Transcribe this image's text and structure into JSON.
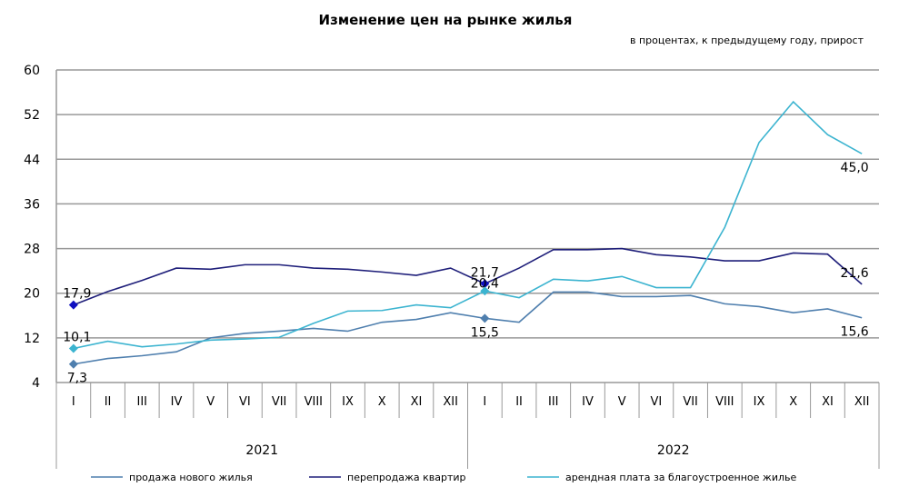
{
  "chart_data": {
    "type": "line",
    "title": "Изменение цен на рынке жилья",
    "subtitle": "в процентах, к предыдущему году, прирост",
    "ylim": [
      4,
      60
    ],
    "yticks": [
      4,
      12,
      20,
      28,
      36,
      44,
      52,
      60
    ],
    "months": [
      "I",
      "II",
      "III",
      "IV",
      "V",
      "VI",
      "VII",
      "VIII",
      "IX",
      "X",
      "XI",
      "XII",
      "I",
      "II",
      "III",
      "IV",
      "V",
      "VI",
      "VII",
      "VIII",
      "IX",
      "X",
      "XI",
      "XII"
    ],
    "years": [
      "2021",
      "2022"
    ],
    "series": [
      {
        "name": "продажа нового  жилья",
        "color": "#4f7fae",
        "values": [
          7.3,
          8.3,
          8.8,
          9.5,
          12.0,
          12.8,
          13.2,
          13.7,
          13.2,
          14.8,
          15.3,
          16.5,
          15.5,
          14.8,
          20.2,
          20.2,
          19.4,
          19.4,
          19.6,
          18.1,
          17.6,
          16.5,
          17.2,
          15.6
        ],
        "labels": {
          "0": "7,3",
          "12": "15,5",
          "23": "15,6"
        }
      },
      {
        "name": "перепродажа  квартир",
        "color": "#1f1f7a",
        "values": [
          17.9,
          20.3,
          22.3,
          24.5,
          24.3,
          25.1,
          25.1,
          24.5,
          24.3,
          23.8,
          23.2,
          24.5,
          21.7,
          24.5,
          27.8,
          27.8,
          28.0,
          26.9,
          26.5,
          25.8,
          25.8,
          27.2,
          27.0,
          21.6
        ],
        "labels": {
          "0": "17,9",
          "12": "21,7",
          "23": "21,6"
        }
      },
      {
        "name": "арендная плата за  благоустроенное   жилье",
        "color": "#3cb4d0",
        "values": [
          10.1,
          11.4,
          10.4,
          10.9,
          11.6,
          11.8,
          12.1,
          14.6,
          16.8,
          16.9,
          17.9,
          17.4,
          20.4,
          19.2,
          22.5,
          22.2,
          23.0,
          21.0,
          21.0,
          31.8,
          47.0,
          54.3,
          48.4,
          45.0
        ],
        "labels": {
          "0": "10,1",
          "12": "20,4",
          "23": "45,0"
        }
      }
    ]
  }
}
